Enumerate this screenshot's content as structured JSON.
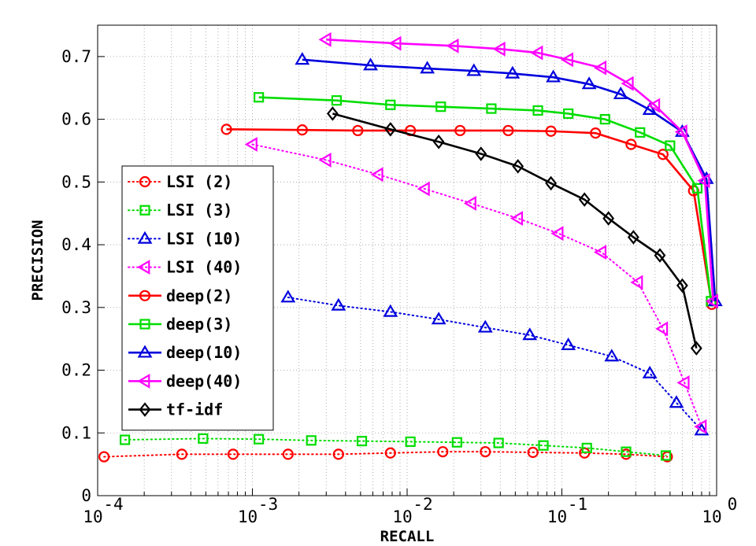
{
  "chart_data": {
    "type": "line",
    "title": "",
    "xlabel": "RECALL",
    "ylabel": "PRECISION",
    "xscale": "log",
    "xlim": [
      0.0001,
      1
    ],
    "ylim": [
      0,
      0.75
    ],
    "grid": true,
    "legend_position": "left",
    "x_ticks": [
      {
        "value": 0.0001,
        "base": "10",
        "exp": "-4"
      },
      {
        "value": 0.001,
        "base": "10",
        "exp": "-3"
      },
      {
        "value": 0.01,
        "base": "10",
        "exp": "-2"
      },
      {
        "value": 0.1,
        "base": "10",
        "exp": "-1"
      },
      {
        "value": 1,
        "base": "10",
        "exp": "0"
      }
    ],
    "y_ticks": [
      {
        "value": 0,
        "label": "0"
      },
      {
        "value": 0.1,
        "label": "0.1"
      },
      {
        "value": 0.2,
        "label": "0.2"
      },
      {
        "value": 0.3,
        "label": "0.3"
      },
      {
        "value": 0.4,
        "label": "0.4"
      },
      {
        "value": 0.5,
        "label": "0.5"
      },
      {
        "value": 0.6,
        "label": "0.6"
      },
      {
        "value": 0.7,
        "label": "0.7"
      }
    ],
    "series": [
      {
        "name": "LSI (2)",
        "color": "#ff0000",
        "marker": "circle",
        "style": "dotted",
        "x": [
          0.00011,
          0.00035,
          0.00075,
          0.0017,
          0.0036,
          0.0078,
          0.017,
          0.032,
          0.065,
          0.14,
          0.26,
          0.48
        ],
        "y": [
          0.062,
          0.066,
          0.066,
          0.066,
          0.066,
          0.068,
          0.07,
          0.07,
          0.069,
          0.068,
          0.066,
          0.062
        ]
      },
      {
        "name": "LSI (3)",
        "color": "#00dd00",
        "marker": "square",
        "style": "dotted",
        "x": [
          0.00015,
          0.00048,
          0.0011,
          0.0024,
          0.0051,
          0.0105,
          0.021,
          0.039,
          0.076,
          0.145,
          0.26,
          0.47
        ],
        "y": [
          0.089,
          0.091,
          0.09,
          0.088,
          0.087,
          0.086,
          0.085,
          0.084,
          0.08,
          0.076,
          0.07,
          0.064
        ]
      },
      {
        "name": "LSI (10)",
        "color": "#0000dd",
        "marker": "triangle-up",
        "style": "dotted",
        "x": [
          0.0017,
          0.0036,
          0.0078,
          0.016,
          0.032,
          0.062,
          0.11,
          0.21,
          0.37,
          0.55,
          0.8
        ],
        "y": [
          0.316,
          0.303,
          0.293,
          0.281,
          0.268,
          0.256,
          0.24,
          0.222,
          0.195,
          0.148,
          0.104
        ]
      },
      {
        "name": "LSI (40)",
        "color": "#ff00ff",
        "marker": "triangle-left",
        "style": "dotted",
        "x": [
          0.001,
          0.003,
          0.0065,
          0.013,
          0.026,
          0.052,
          0.095,
          0.18,
          0.31,
          0.45,
          0.62,
          0.8
        ],
        "y": [
          0.56,
          0.535,
          0.512,
          0.489,
          0.466,
          0.442,
          0.418,
          0.388,
          0.34,
          0.266,
          0.18,
          0.11
        ]
      },
      {
        "name": "deep(2)",
        "color": "#ff0000",
        "marker": "circle",
        "style": "solid",
        "x": [
          0.00068,
          0.0021,
          0.0048,
          0.0105,
          0.022,
          0.045,
          0.085,
          0.165,
          0.28,
          0.45,
          0.71,
          0.93
        ],
        "y": [
          0.584,
          0.583,
          0.582,
          0.582,
          0.582,
          0.582,
          0.581,
          0.578,
          0.56,
          0.544,
          0.486,
          0.305
        ]
      },
      {
        "name": "deep(3)",
        "color": "#00dd00",
        "marker": "square",
        "style": "solid",
        "x": [
          0.0011,
          0.0035,
          0.0078,
          0.0165,
          0.035,
          0.07,
          0.11,
          0.19,
          0.32,
          0.5,
          0.75,
          0.92
        ],
        "y": [
          0.635,
          0.63,
          0.623,
          0.62,
          0.617,
          0.614,
          0.609,
          0.6,
          0.579,
          0.558,
          0.49,
          0.31
        ]
      },
      {
        "name": "deep(10)",
        "color": "#0000dd",
        "marker": "triangle-up",
        "style": "solid",
        "x": [
          0.0021,
          0.0058,
          0.0135,
          0.027,
          0.048,
          0.088,
          0.15,
          0.24,
          0.37,
          0.6,
          0.86,
          0.98
        ],
        "y": [
          0.695,
          0.686,
          0.681,
          0.677,
          0.673,
          0.667,
          0.656,
          0.64,
          0.615,
          0.58,
          0.505,
          0.31
        ]
      },
      {
        "name": "deep(40)",
        "color": "#ff00ff",
        "marker": "triangle-left",
        "style": "solid",
        "x": [
          0.003,
          0.0085,
          0.02,
          0.04,
          0.07,
          0.11,
          0.18,
          0.27,
          0.4,
          0.6,
          0.84,
          0.95
        ],
        "y": [
          0.727,
          0.721,
          0.717,
          0.712,
          0.706,
          0.695,
          0.682,
          0.657,
          0.622,
          0.58,
          0.502,
          0.31
        ]
      },
      {
        "name": "tf-idf",
        "color": "#000000",
        "marker": "diamond",
        "style": "solid",
        "x": [
          0.0033,
          0.0078,
          0.016,
          0.03,
          0.052,
          0.085,
          0.14,
          0.2,
          0.29,
          0.43,
          0.6,
          0.74
        ],
        "y": [
          0.609,
          0.584,
          0.564,
          0.545,
          0.525,
          0.498,
          0.472,
          0.442,
          0.412,
          0.383,
          0.335,
          0.235
        ]
      }
    ]
  }
}
